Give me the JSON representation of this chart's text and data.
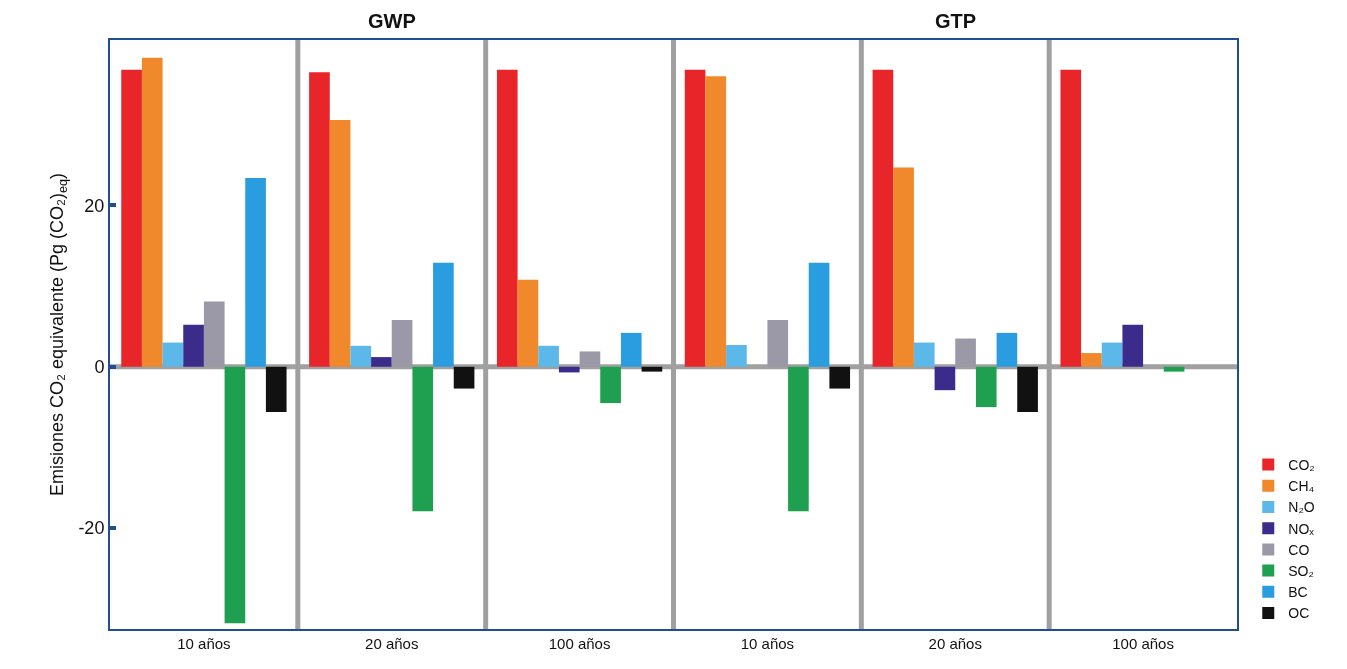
{
  "chart_data": {
    "type": "bar",
    "ylabel": "Emisiones CO₂ equivalente (Pg (CO₂)$_{eq}$)",
    "annotations": [
      "GWP",
      "GTP"
    ],
    "categories": [
      "10 años",
      "20 años",
      "100 años",
      "10 años",
      "20 años",
      "100 años"
    ],
    "series": [
      {
        "name": "CO₂",
        "color": "#e8262a",
        "values": [
          36.8,
          36.5,
          36.8,
          36.8,
          36.8,
          36.8
        ]
      },
      {
        "name": "CH₄",
        "color": "#f0892c",
        "values": [
          38.3,
          30.6,
          10.8,
          36,
          24.7,
          1.7
        ]
      },
      {
        "name": "N₂O",
        "color": "#5bb8e8",
        "values": [
          3,
          2.6,
          2.6,
          2.7,
          3,
          3
        ]
      },
      {
        "name": "NOₓ",
        "color": "#3b2c8c",
        "values": [
          5.2,
          1.2,
          -0.7,
          0,
          -2.9,
          5.2
        ]
      },
      {
        "name": "CO",
        "color": "#9b98a8",
        "values": [
          8.1,
          5.8,
          1.9,
          5.8,
          3.5,
          0
        ]
      },
      {
        "name": "SO₂",
        "color": "#1fa050",
        "values": [
          -31.8,
          -17.9,
          -4.5,
          -17.9,
          -5,
          -0.6
        ]
      },
      {
        "name": "BC",
        "color": "#2a9de0",
        "values": [
          23.4,
          12.9,
          4.2,
          12.9,
          4.2,
          0
        ]
      },
      {
        "name": "OC",
        "color": "#111111",
        "values": [
          -5.6,
          -2.7,
          -0.6,
          -2.7,
          -5.6,
          0
        ]
      }
    ],
    "ref_lines": [
      {
        "axis": "y",
        "value": 0,
        "color": "#a0a0a0"
      }
    ],
    "ylim": [
      -32.5,
      40.5
    ],
    "yticks": [
      -20,
      0,
      20
    ],
    "grid": false,
    "legend": "bottom right"
  }
}
